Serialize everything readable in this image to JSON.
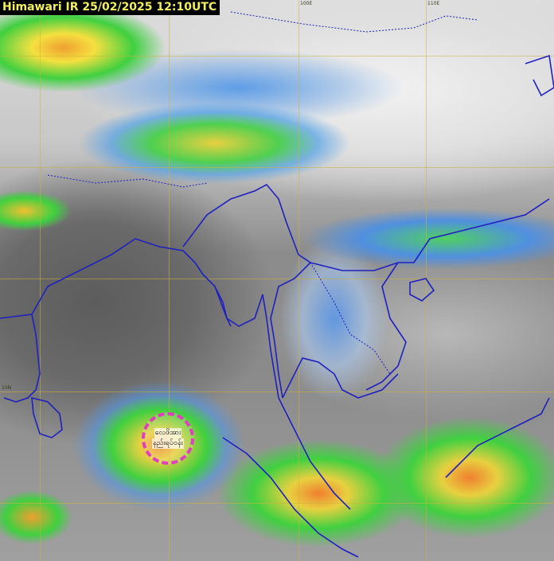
{
  "title": "Himawari IR 25/02/2025 12:10UTC",
  "grid_labels": {
    "lon_100": "100E",
    "lon_110": "110E",
    "lat_10": "10N"
  },
  "annotation": {
    "line1": "လေဖိအား",
    "line2": "နည်းရပ်ဝန်း",
    "color": "#e040c0"
  },
  "colors": {
    "border": "#2020c0",
    "grid": "#c8b43c",
    "title_text": "#f0f060"
  }
}
